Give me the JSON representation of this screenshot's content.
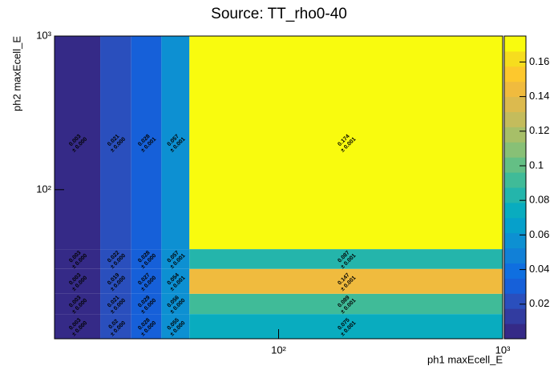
{
  "chart_data": {
    "type": "heatmap",
    "title": "Source: TT_rho0-40",
    "x_label": "ph1 maxEcell_E",
    "y_label": "ph2 maxEcell_E",
    "log_x": true,
    "log_y": true,
    "x_edges": [
      10,
      16,
      22,
      30,
      40,
      1000
    ],
    "y_edges": [
      10.7,
      15.5,
      21,
      30.5,
      41,
      1000
    ],
    "xlim": [
      10,
      1000
    ],
    "ylim": [
      10.7,
      1000
    ],
    "xticks": [
      {
        "value": 100,
        "label": "10²"
      },
      {
        "value": 1000,
        "label": "10³"
      }
    ],
    "yticks": [
      {
        "value": 100,
        "label": "10²"
      },
      {
        "value": 1000,
        "label": "10³"
      }
    ],
    "z": [
      [
        0.003,
        0.02,
        0.028,
        0.055,
        0.075
      ],
      [
        0.003,
        0.021,
        0.029,
        0.056,
        0.089
      ],
      [
        0.003,
        0.019,
        0.027,
        0.054,
        0.147
      ],
      [
        0.003,
        0.022,
        0.028,
        0.057,
        0.087
      ],
      [
        0.003,
        0.021,
        0.028,
        0.057,
        0.174
      ]
    ],
    "error_labels": [
      [
        "± 0.000",
        "± 0.000",
        "± 0.000",
        "± 0.000",
        "± 0.001"
      ],
      [
        "± 0.000",
        "± 0.000",
        "± 0.000",
        "± 0.000",
        "± 0.001"
      ],
      [
        "± 0.000",
        "± 0.000",
        "± 0.000",
        "± 0.001",
        "± 0.001"
      ],
      [
        "± 0.000",
        "± 0.000",
        "± 0.000",
        "± 0.001",
        "± 0.001"
      ],
      [
        "± 0.000",
        "± 0.000",
        "± 0.001",
        "± 0.001",
        "± 0.001"
      ]
    ],
    "zlim": [
      0,
      0.175
    ],
    "zticks": [
      0.02,
      0.04,
      0.06,
      0.08,
      0.1,
      0.12,
      0.14,
      0.16
    ],
    "palette": [
      "#352a87",
      "#323ca0",
      "#2a4fbd",
      "#1660d9",
      "#0f6fe0",
      "#1180d7",
      "#0d90d2",
      "#06a0cb",
      "#09acbf",
      "#24b5ab",
      "#40bb98",
      "#64bf85",
      "#88c076",
      "#a7bf68",
      "#c4bc5c",
      "#dcba4e",
      "#f0bb3e",
      "#fdc82d",
      "#f6dd1e",
      "#f9fb0e"
    ]
  }
}
